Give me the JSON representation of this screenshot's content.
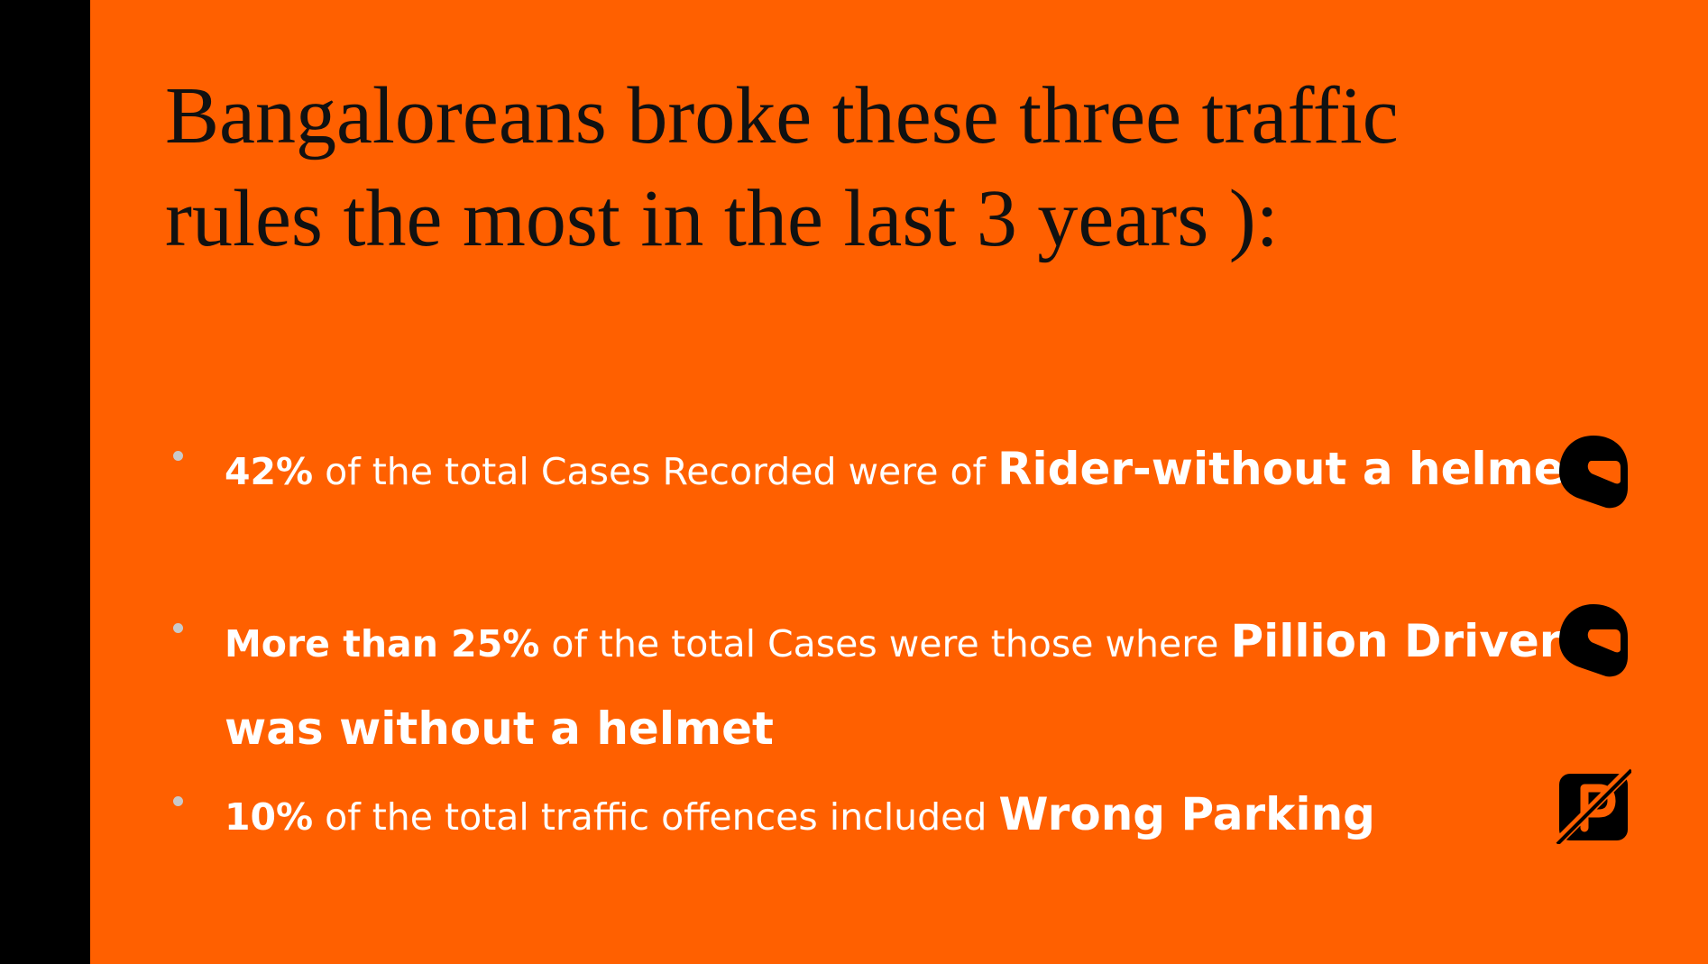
{
  "slide": {
    "title": "Bangaloreans broke these three traffic rules the most in the last 3 years ):",
    "accent_color": "#FF6000",
    "bullets": [
      {
        "lead": "42%",
        "mid": " of the total Cases Recorded were of ",
        "emphasis": "Rider-without a helmet",
        "icon": "helmet-icon"
      },
      {
        "lead": "More than 25%",
        "mid": " of the total Cases were those where ",
        "emphasis": "Pillion Driver was without a helmet",
        "icon": "helmet-icon"
      },
      {
        "lead": "10%",
        "mid": " of the total traffic offences included ",
        "emphasis": "Wrong Parking",
        "icon": "no-parking-icon"
      }
    ]
  }
}
